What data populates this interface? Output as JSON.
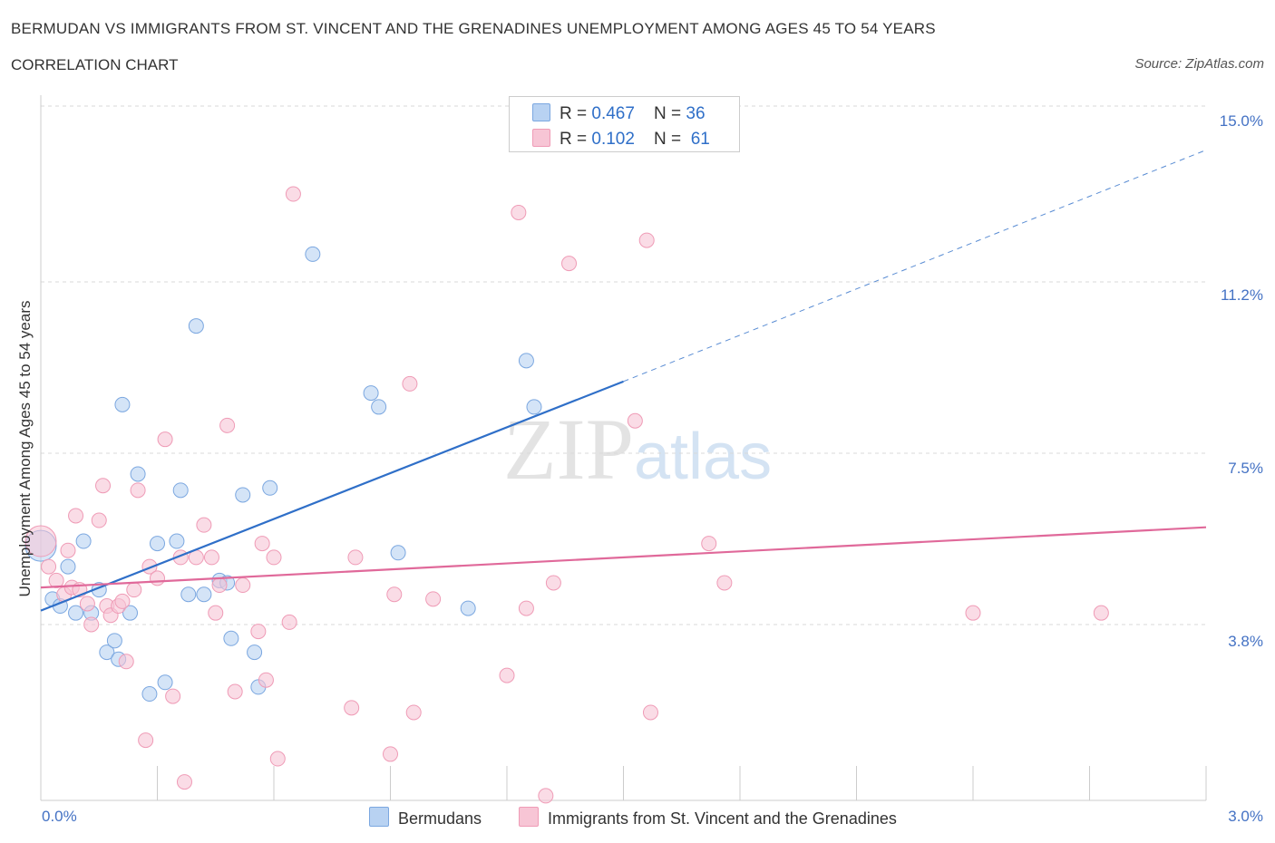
{
  "header": {
    "title": "BERMUDAN VS IMMIGRANTS FROM ST. VINCENT AND THE GRENADINES UNEMPLOYMENT AMONG AGES 45 TO 54 YEARS",
    "subtitle": "CORRELATION CHART",
    "source": "Source: ZipAtlas.com"
  },
  "watermark": {
    "zip": "ZIP",
    "atlas": "atlas"
  },
  "legend": {
    "rows": [
      {
        "r_label": "R = ",
        "r_value": "0.467",
        "n_label": "N = ",
        "n_value": "36",
        "color": "#b8d2f2"
      },
      {
        "r_label": "R = ",
        "r_value": "0.102",
        "n_label": "N = ",
        "n_value": "61",
        "color": "#f7c5d5"
      }
    ]
  },
  "bottom_legend": {
    "items": [
      {
        "label": "Bermudans",
        "color": "#b8d2f2"
      },
      {
        "label": "Immigrants from St. Vincent and the Grenadines",
        "color": "#f7c5d5"
      }
    ]
  },
  "chart_data": {
    "type": "scatter",
    "title": "BERMUDAN VS IMMIGRANTS FROM ST. VINCENT AND THE GRENADINES UNEMPLOYMENT AMONG AGES 45 TO 54 YEARS",
    "subtitle": "CORRELATION CHART",
    "xlabel": "",
    "ylabel": "Unemployment Among Ages 45 to 54 years",
    "xlim": [
      0,
      3.0
    ],
    "ylim": [
      0,
      15.0
    ],
    "x_tick_labels": [
      "0.0%",
      "3.0%"
    ],
    "y_ticks": [
      3.8,
      7.5,
      11.2,
      15.0
    ],
    "y_tick_labels": [
      "3.8%",
      "7.5%",
      "11.2%",
      "15.0%"
    ],
    "grid": "horizontal dashed",
    "legend_position": "top-center",
    "series": [
      {
        "name": "Bermudans",
        "color": "#7ba7e0",
        "fill": "#b8d2f2",
        "trend_color": "#2f6fc8",
        "trend_solid": {
          "x": [
            0.0,
            1.5
          ],
          "y": [
            4.1,
            9.05
          ]
        },
        "trend_dashed": {
          "x": [
            1.5,
            3.0
          ],
          "y": [
            9.05,
            14.05
          ]
        },
        "points": [
          {
            "x": 0.0,
            "y": 5.5,
            "big": true
          },
          {
            "x": 0.03,
            "y": 4.35
          },
          {
            "x": 0.05,
            "y": 4.2
          },
          {
            "x": 0.07,
            "y": 5.05
          },
          {
            "x": 0.09,
            "y": 4.05
          },
          {
            "x": 0.11,
            "y": 5.6
          },
          {
            "x": 0.13,
            "y": 4.05
          },
          {
            "x": 0.15,
            "y": 4.55
          },
          {
            "x": 0.17,
            "y": 3.2
          },
          {
            "x": 0.19,
            "y": 3.45
          },
          {
            "x": 0.2,
            "y": 3.05
          },
          {
            "x": 0.21,
            "y": 8.55
          },
          {
            "x": 0.23,
            "y": 4.05
          },
          {
            "x": 0.25,
            "y": 7.05
          },
          {
            "x": 0.28,
            "y": 2.3
          },
          {
            "x": 0.3,
            "y": 5.55
          },
          {
            "x": 0.32,
            "y": 2.55
          },
          {
            "x": 0.35,
            "y": 5.6
          },
          {
            "x": 0.36,
            "y": 6.7
          },
          {
            "x": 0.38,
            "y": 4.45
          },
          {
            "x": 0.4,
            "y": 10.25
          },
          {
            "x": 0.42,
            "y": 4.45
          },
          {
            "x": 0.46,
            "y": 4.75
          },
          {
            "x": 0.48,
            "y": 4.7
          },
          {
            "x": 0.49,
            "y": 3.5
          },
          {
            "x": 0.52,
            "y": 6.6
          },
          {
            "x": 0.55,
            "y": 3.2
          },
          {
            "x": 0.56,
            "y": 2.45
          },
          {
            "x": 0.59,
            "y": 6.75
          },
          {
            "x": 0.7,
            "y": 11.8
          },
          {
            "x": 0.85,
            "y": 8.8
          },
          {
            "x": 0.87,
            "y": 8.5
          },
          {
            "x": 0.92,
            "y": 5.35
          },
          {
            "x": 1.1,
            "y": 4.15
          },
          {
            "x": 1.25,
            "y": 9.5
          },
          {
            "x": 1.27,
            "y": 8.5
          }
        ]
      },
      {
        "name": "Immigrants from St. Vincent and the Grenadines",
        "color": "#ef9bb6",
        "fill": "#f7c5d5",
        "trend_color": "#e0699a",
        "trend_solid": {
          "x": [
            0.0,
            3.0
          ],
          "y": [
            4.6,
            5.9
          ]
        },
        "points": [
          {
            "x": 0.0,
            "y": 5.6,
            "big": true
          },
          {
            "x": 0.02,
            "y": 5.05
          },
          {
            "x": 0.04,
            "y": 4.75
          },
          {
            "x": 0.06,
            "y": 4.45
          },
          {
            "x": 0.07,
            "y": 5.4
          },
          {
            "x": 0.08,
            "y": 4.6
          },
          {
            "x": 0.09,
            "y": 6.15
          },
          {
            "x": 0.1,
            "y": 4.55
          },
          {
            "x": 0.12,
            "y": 4.25
          },
          {
            "x": 0.13,
            "y": 3.8
          },
          {
            "x": 0.15,
            "y": 6.05
          },
          {
            "x": 0.16,
            "y": 6.8
          },
          {
            "x": 0.17,
            "y": 4.2
          },
          {
            "x": 0.18,
            "y": 4.0
          },
          {
            "x": 0.2,
            "y": 4.2
          },
          {
            "x": 0.21,
            "y": 4.3
          },
          {
            "x": 0.22,
            "y": 3.0
          },
          {
            "x": 0.24,
            "y": 4.55
          },
          {
            "x": 0.25,
            "y": 6.7
          },
          {
            "x": 0.27,
            "y": 1.3
          },
          {
            "x": 0.28,
            "y": 5.05
          },
          {
            "x": 0.3,
            "y": 4.8
          },
          {
            "x": 0.32,
            "y": 7.8
          },
          {
            "x": 0.34,
            "y": 2.25
          },
          {
            "x": 0.36,
            "y": 5.25
          },
          {
            "x": 0.37,
            "y": 0.4
          },
          {
            "x": 0.4,
            "y": 5.25
          },
          {
            "x": 0.42,
            "y": 5.95
          },
          {
            "x": 0.44,
            "y": 5.25
          },
          {
            "x": 0.45,
            "y": 4.05
          },
          {
            "x": 0.46,
            "y": 4.65
          },
          {
            "x": 0.48,
            "y": 8.1
          },
          {
            "x": 0.5,
            "y": 2.35
          },
          {
            "x": 0.52,
            "y": 4.65
          },
          {
            "x": 0.56,
            "y": 3.65
          },
          {
            "x": 0.57,
            "y": 5.55
          },
          {
            "x": 0.58,
            "y": 2.6
          },
          {
            "x": 0.6,
            "y": 5.25
          },
          {
            "x": 0.61,
            "y": 0.9
          },
          {
            "x": 0.64,
            "y": 3.85
          },
          {
            "x": 0.65,
            "y": 13.1
          },
          {
            "x": 0.8,
            "y": 2.0
          },
          {
            "x": 0.81,
            "y": 5.25
          },
          {
            "x": 0.9,
            "y": 1.0
          },
          {
            "x": 0.91,
            "y": 4.45
          },
          {
            "x": 0.95,
            "y": 9.0
          },
          {
            "x": 0.96,
            "y": 1.9
          },
          {
            "x": 1.01,
            "y": 4.35
          },
          {
            "x": 1.2,
            "y": 2.7
          },
          {
            "x": 1.23,
            "y": 12.7
          },
          {
            "x": 1.25,
            "y": 4.15
          },
          {
            "x": 1.3,
            "y": 0.1
          },
          {
            "x": 1.32,
            "y": 4.7
          },
          {
            "x": 1.36,
            "y": 11.6
          },
          {
            "x": 1.53,
            "y": 8.2
          },
          {
            "x": 1.56,
            "y": 12.1
          },
          {
            "x": 1.57,
            "y": 1.9
          },
          {
            "x": 1.72,
            "y": 5.55
          },
          {
            "x": 1.76,
            "y": 4.7
          },
          {
            "x": 2.4,
            "y": 4.05
          },
          {
            "x": 2.73,
            "y": 4.05
          }
        ]
      }
    ]
  }
}
